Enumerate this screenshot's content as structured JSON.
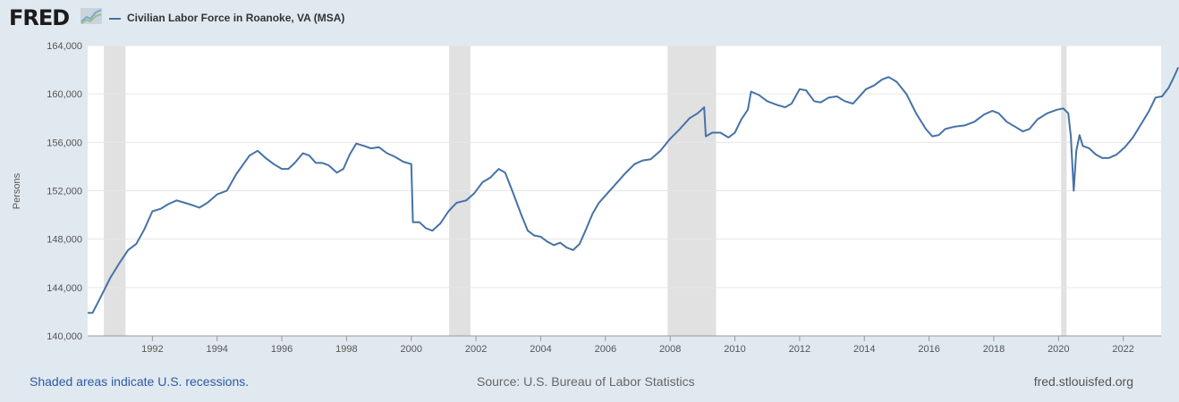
{
  "header": {
    "logo_text": "FRED",
    "logo_icon": "fred-line-chart-icon",
    "legend_label": "Civilian Labor Force in Roanoke, VA (MSA)",
    "series_color": "#4572a7"
  },
  "footer": {
    "recession_note": "Shaded areas indicate U.S. recessions.",
    "source": "Source: U.S. Bureau of Labor Statistics",
    "site": "fred.stlouisfed.org"
  },
  "chart_data": {
    "type": "line",
    "title": "",
    "xlabel": "",
    "ylabel": "Persons",
    "xlim": [
      1990.0,
      2023.17
    ],
    "ylim": [
      140000,
      164000
    ],
    "y_ticks": [
      140000,
      144000,
      148000,
      152000,
      156000,
      160000,
      164000
    ],
    "y_tick_labels": [
      "140,000",
      "144,000",
      "148,000",
      "152,000",
      "156,000",
      "160,000",
      "164,000"
    ],
    "x_ticks": [
      1992,
      1994,
      1996,
      1998,
      2000,
      2002,
      2004,
      2006,
      2008,
      2010,
      2012,
      2014,
      2016,
      2018,
      2020,
      2022
    ],
    "x_tick_labels": [
      "1992",
      "1994",
      "1996",
      "1998",
      "2000",
      "2002",
      "2004",
      "2006",
      "2008",
      "2010",
      "2012",
      "2014",
      "2016",
      "2018",
      "2020",
      "2022"
    ],
    "grid": "horizontal",
    "recessions": [
      [
        1990.5,
        1991.17
      ],
      [
        2001.17,
        2001.83
      ],
      [
        2007.92,
        2009.42
      ],
      [
        2020.08,
        2020.25
      ]
    ],
    "series": [
      {
        "color": "#4572a7",
        "points": [
          [
            1990.0,
            141900
          ],
          [
            1990.15,
            141900
          ],
          [
            1990.4,
            143200
          ],
          [
            1990.7,
            144800
          ],
          [
            1991.0,
            146100
          ],
          [
            1991.25,
            147100
          ],
          [
            1991.5,
            147600
          ],
          [
            1991.75,
            148800
          ],
          [
            1992.0,
            150300
          ],
          [
            1992.25,
            150500
          ],
          [
            1992.5,
            150900
          ],
          [
            1992.75,
            151200
          ],
          [
            1993.0,
            151000
          ],
          [
            1993.25,
            150800
          ],
          [
            1993.45,
            150600
          ],
          [
            1993.7,
            151000
          ],
          [
            1994.0,
            151700
          ],
          [
            1994.3,
            152000
          ],
          [
            1994.6,
            153400
          ],
          [
            1995.0,
            154900
          ],
          [
            1995.25,
            155300
          ],
          [
            1995.5,
            154700
          ],
          [
            1995.75,
            154200
          ],
          [
            1996.0,
            153800
          ],
          [
            1996.2,
            153800
          ],
          [
            1996.4,
            154300
          ],
          [
            1996.65,
            155100
          ],
          [
            1996.85,
            154900
          ],
          [
            1997.05,
            154300
          ],
          [
            1997.25,
            154300
          ],
          [
            1997.45,
            154100
          ],
          [
            1997.7,
            153500
          ],
          [
            1997.9,
            153800
          ],
          [
            1998.1,
            155000
          ],
          [
            1998.3,
            155900
          ],
          [
            1998.55,
            155700
          ],
          [
            1998.75,
            155500
          ],
          [
            1999.0,
            155600
          ],
          [
            1999.25,
            155100
          ],
          [
            1999.5,
            154800
          ],
          [
            1999.75,
            154400
          ],
          [
            2000.0,
            154200
          ],
          [
            2000.05,
            149400
          ],
          [
            2000.25,
            149400
          ],
          [
            2000.45,
            148900
          ],
          [
            2000.65,
            148700
          ],
          [
            2000.9,
            149300
          ],
          [
            2001.15,
            150300
          ],
          [
            2001.4,
            151000
          ],
          [
            2001.7,
            151200
          ],
          [
            2001.95,
            151800
          ],
          [
            2002.2,
            152700
          ],
          [
            2002.45,
            153100
          ],
          [
            2002.7,
            153800
          ],
          [
            2002.9,
            153500
          ],
          [
            2003.15,
            151800
          ],
          [
            2003.4,
            150000
          ],
          [
            2003.6,
            148700
          ],
          [
            2003.8,
            148300
          ],
          [
            2004.0,
            148200
          ],
          [
            2004.2,
            147800
          ],
          [
            2004.4,
            147500
          ],
          [
            2004.6,
            147700
          ],
          [
            2004.8,
            147300
          ],
          [
            2005.0,
            147100
          ],
          [
            2005.2,
            147600
          ],
          [
            2005.4,
            148800
          ],
          [
            2005.6,
            150100
          ],
          [
            2005.8,
            151000
          ],
          [
            2006.0,
            151600
          ],
          [
            2006.3,
            152500
          ],
          [
            2006.6,
            153400
          ],
          [
            2006.9,
            154200
          ],
          [
            2007.15,
            154500
          ],
          [
            2007.4,
            154600
          ],
          [
            2007.7,
            155300
          ],
          [
            2008.0,
            156300
          ],
          [
            2008.3,
            157100
          ],
          [
            2008.6,
            158000
          ],
          [
            2008.85,
            158400
          ],
          [
            2009.05,
            158900
          ],
          [
            2009.1,
            156500
          ],
          [
            2009.3,
            156800
          ],
          [
            2009.55,
            156800
          ],
          [
            2009.8,
            156400
          ],
          [
            2010.0,
            156800
          ],
          [
            2010.2,
            157900
          ],
          [
            2010.4,
            158700
          ],
          [
            2010.5,
            160200
          ],
          [
            2010.75,
            159900
          ],
          [
            2011.0,
            159400
          ],
          [
            2011.3,
            159100
          ],
          [
            2011.55,
            158900
          ],
          [
            2011.75,
            159200
          ],
          [
            2012.0,
            160400
          ],
          [
            2012.2,
            160300
          ],
          [
            2012.45,
            159400
          ],
          [
            2012.65,
            159300
          ],
          [
            2012.9,
            159700
          ],
          [
            2013.15,
            159800
          ],
          [
            2013.4,
            159400
          ],
          [
            2013.65,
            159200
          ],
          [
            2013.85,
            159800
          ],
          [
            2014.05,
            160400
          ],
          [
            2014.3,
            160700
          ],
          [
            2014.55,
            161200
          ],
          [
            2014.75,
            161400
          ],
          [
            2015.0,
            161000
          ],
          [
            2015.3,
            160000
          ],
          [
            2015.6,
            158400
          ],
          [
            2015.9,
            157100
          ],
          [
            2016.1,
            156500
          ],
          [
            2016.3,
            156600
          ],
          [
            2016.5,
            157100
          ],
          [
            2016.8,
            157300
          ],
          [
            2017.1,
            157400
          ],
          [
            2017.4,
            157700
          ],
          [
            2017.7,
            158300
          ],
          [
            2017.95,
            158600
          ],
          [
            2018.15,
            158400
          ],
          [
            2018.4,
            157700
          ],
          [
            2018.65,
            157300
          ],
          [
            2018.9,
            156900
          ],
          [
            2019.1,
            157100
          ],
          [
            2019.35,
            157900
          ],
          [
            2019.65,
            158400
          ],
          [
            2019.95,
            158700
          ],
          [
            2020.15,
            158800
          ],
          [
            2020.3,
            158400
          ],
          [
            2020.38,
            156500
          ],
          [
            2020.47,
            152000
          ],
          [
            2020.55,
            155300
          ],
          [
            2020.65,
            156600
          ],
          [
            2020.75,
            155700
          ],
          [
            2020.95,
            155500
          ],
          [
            2021.15,
            155000
          ],
          [
            2021.35,
            154700
          ],
          [
            2021.55,
            154700
          ],
          [
            2021.8,
            155000
          ],
          [
            2022.05,
            155600
          ],
          [
            2022.3,
            156400
          ],
          [
            2022.55,
            157500
          ],
          [
            2022.8,
            158600
          ],
          [
            2023.0,
            159700
          ],
          [
            2023.2,
            159800
          ],
          [
            2023.4,
            160500
          ],
          [
            2023.55,
            161300
          ],
          [
            2023.7,
            162200
          ]
        ]
      }
    ]
  }
}
